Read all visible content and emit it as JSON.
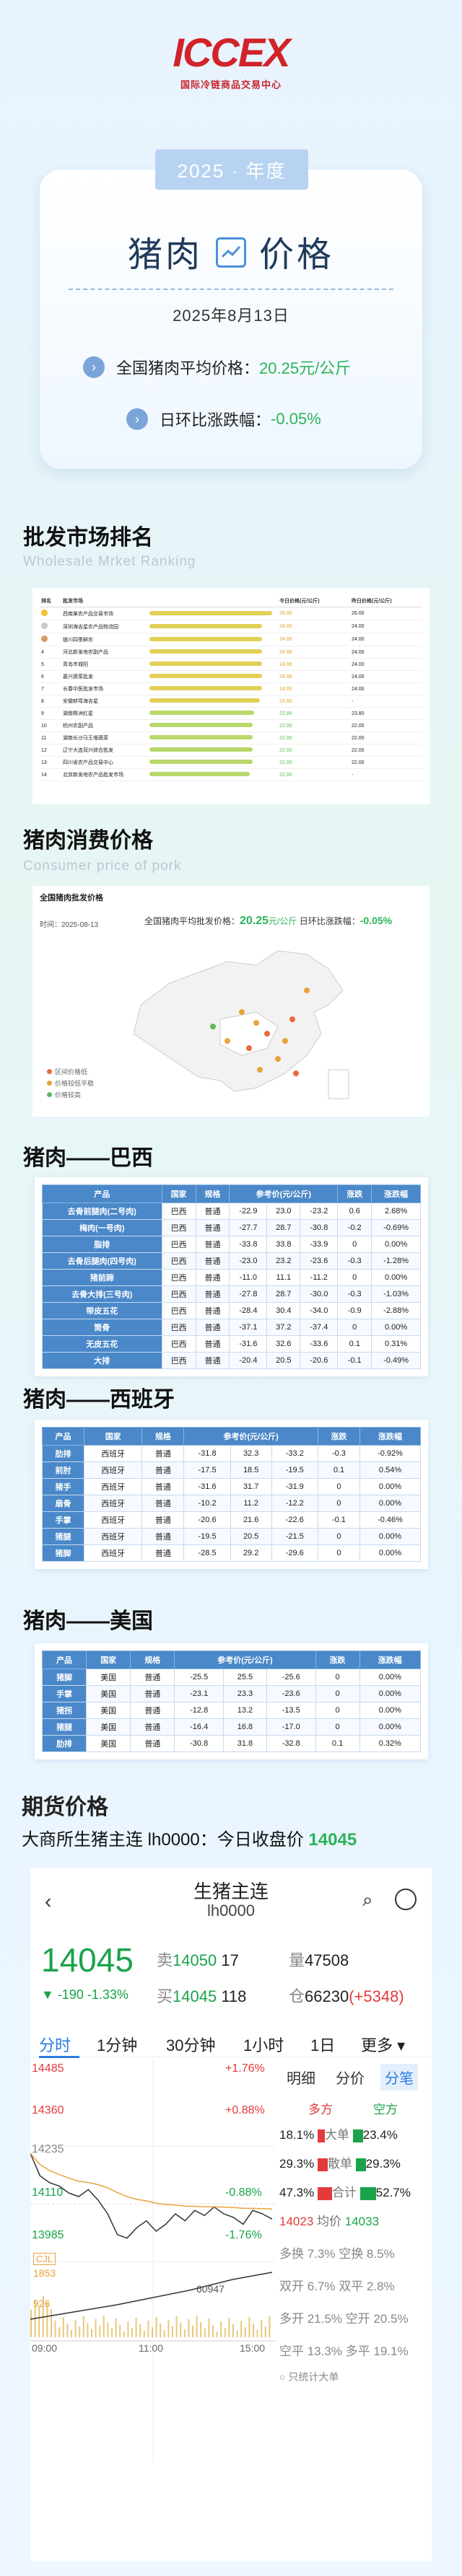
{
  "header": {
    "logo_text": "ICCEX",
    "logo_sub": "国际冷链商品交易中心"
  },
  "hero": {
    "year": "2025 · 年度",
    "title_left": "猪肉",
    "title_right": "价格",
    "date": "2025年8月13日",
    "avg_label": "全国猪肉平均价格：",
    "avg_value": "20.25元/公斤",
    "change_label": "日环比涨跌幅：",
    "change_value": "-0.05%"
  },
  "wholesale": {
    "title": "批发市场排名",
    "subtitle": "Wholesale Mrket Ranking",
    "headers": [
      "排名",
      "批发市场",
      "",
      "今日价格(元/公斤)",
      "昨日价格(元/公斤)"
    ],
    "rows": [
      {
        "rank": "1",
        "name": "西南某农产品交易市场",
        "bar": 1.0,
        "today": "26.00",
        "yest": "26.00",
        "color": "y"
      },
      {
        "rank": "2",
        "name": "深圳海吉星农产品物流园",
        "bar": 0.92,
        "today": "24.00",
        "yest": "24.00",
        "color": "y"
      },
      {
        "rank": "3",
        "name": "银川四季鲜农",
        "bar": 0.92,
        "today": "24.00",
        "yest": "24.00",
        "color": "y"
      },
      {
        "rank": "4",
        "name": "河北新发地农副产品",
        "bar": 0.92,
        "today": "24.00",
        "yest": "24.00",
        "color": "y"
      },
      {
        "rank": "5",
        "name": "青岛市城阳",
        "bar": 0.92,
        "today": "24.00",
        "yest": "24.00",
        "color": "y"
      },
      {
        "rank": "6",
        "name": "嘉兴蔬菜批发",
        "bar": 0.92,
        "today": "24.00",
        "yest": "24.00",
        "color": "y"
      },
      {
        "rank": "7",
        "name": "长春中医批发市场",
        "bar": 0.92,
        "today": "24.00",
        "yest": "24.00",
        "color": "y"
      },
      {
        "rank": "8",
        "name": "安徽蚌埠海吉星",
        "bar": 0.9,
        "today": "23.60",
        "yest": "-",
        "color": "y"
      },
      {
        "rank": "9",
        "name": "湖南株洲红星",
        "bar": 0.85,
        "today": "22.80",
        "yest": "23.80",
        "color": "g"
      },
      {
        "rank": "10",
        "name": "杭州农副产品",
        "bar": 0.84,
        "today": "22.00",
        "yest": "22.00",
        "color": "g"
      },
      {
        "rank": "11",
        "name": "湖南长沙马王堆蔬菜",
        "bar": 0.84,
        "today": "22.00",
        "yest": "22.00",
        "color": "g"
      },
      {
        "rank": "12",
        "name": "辽宁大连双兴综合批发",
        "bar": 0.84,
        "today": "22.00",
        "yest": "22.00",
        "color": "g"
      },
      {
        "rank": "13",
        "name": "四川省农产品交易中心",
        "bar": 0.84,
        "today": "22.00",
        "yest": "22.00",
        "color": "g"
      },
      {
        "rank": "14",
        "name": "北京新发地农产品批发市场",
        "bar": 0.82,
        "today": "22.00",
        "yest": "-",
        "color": "g"
      }
    ]
  },
  "consume": {
    "title": "猪肉消费价格",
    "subtitle": "Consumer price of pork",
    "panel_title": "全国猪肉批发价格",
    "date_label": "时间：",
    "date": "2025-08-13",
    "price_label": "全国猪肉平均批发价格：",
    "price": "20.25",
    "unit": "元/公斤",
    "change_label": "日环比涨跌幅：",
    "change": "-0.05%",
    "legend": [
      "区间价格低",
      "价格较低平稳",
      "价格较高"
    ]
  },
  "brazil": {
    "title": "猪肉——巴西",
    "headers": [
      "产品",
      "国家",
      "规格",
      "参考价(元/公斤)",
      "",
      "",
      "涨跌",
      "涨跌幅"
    ],
    "rows": [
      [
        "去骨前腿肉(二号肉)",
        "巴西",
        "普通",
        "-22.9",
        "23.0",
        "-23.2",
        "0.6",
        "2.68%"
      ],
      [
        "梅肉(一号肉)",
        "巴西",
        "普通",
        "-27.7",
        "28.7",
        "-30.8",
        "-0.2",
        "-0.69%"
      ],
      [
        "脂排",
        "巴西",
        "普通",
        "-33.8",
        "33.8",
        "-33.9",
        "0",
        "0.00%"
      ],
      [
        "去骨后腿肉(四号肉)",
        "巴西",
        "普通",
        "-23.0",
        "23.2",
        "-23.6",
        "-0.3",
        "-1.28%"
      ],
      [
        "猪前蹄",
        "巴西",
        "普通",
        "-11.0",
        "11.1",
        "-11.2",
        "0",
        "0.00%"
      ],
      [
        "去骨大排(三号肉)",
        "巴西",
        "普通",
        "-27.8",
        "28.7",
        "-30.0",
        "-0.3",
        "-1.03%"
      ],
      [
        "带皮五花",
        "巴西",
        "普通",
        "-28.4",
        "30.4",
        "-34.0",
        "-0.9",
        "-2.88%"
      ],
      [
        "筒骨",
        "巴西",
        "普通",
        "-37.1",
        "37.2",
        "-37.4",
        "0",
        "0.00%"
      ],
      [
        "无皮五花",
        "巴西",
        "普通",
        "-31.6",
        "32.6",
        "-33.6",
        "0.1",
        "0.31%"
      ],
      [
        "大排",
        "巴西",
        "普通",
        "-20.4",
        "20.5",
        "-20.6",
        "-0.1",
        "-0.49%"
      ]
    ]
  },
  "spain": {
    "title": "猪肉——西班牙",
    "headers": [
      "产品",
      "国家",
      "规格",
      "参考价(元/公斤)",
      "",
      "",
      "涨跌",
      "涨跌幅"
    ],
    "rows": [
      [
        "肋排",
        "西班牙",
        "普通",
        "-31.8",
        "32.3",
        "-33.2",
        "-0.3",
        "-0.92%"
      ],
      [
        "前肘",
        "西班牙",
        "普通",
        "-17.5",
        "18.5",
        "-19.5",
        "0.1",
        "0.54%"
      ],
      [
        "猪手",
        "西班牙",
        "普通",
        "-31.6",
        "31.7",
        "-31.9",
        "0",
        "0.00%"
      ],
      [
        "扇骨",
        "西班牙",
        "普通",
        "-10.2",
        "11.2",
        "-12.2",
        "0",
        "0.00%"
      ],
      [
        "手掌",
        "西班牙",
        "普通",
        "-20.6",
        "21.6",
        "-22.6",
        "-0.1",
        "-0.46%"
      ],
      [
        "猪腿",
        "西班牙",
        "普通",
        "-19.5",
        "20.5",
        "-21.5",
        "0",
        "0.00%"
      ],
      [
        "猪脚",
        "西班牙",
        "普通",
        "-28.5",
        "29.2",
        "-29.6",
        "0",
        "0.00%"
      ]
    ]
  },
  "usa": {
    "title": "猪肉——美国",
    "headers": [
      "产品",
      "国家",
      "规格",
      "参考价(元/公斤)",
      "",
      "",
      "涨跌",
      "涨跌幅"
    ],
    "rows": [
      [
        "猪脚",
        "美国",
        "普通",
        "-25.5",
        "25.5",
        "-25.6",
        "0",
        "0.00%"
      ],
      [
        "手掌",
        "美国",
        "普通",
        "-23.1",
        "23.3",
        "-23.6",
        "0",
        "0.00%"
      ],
      [
        "猪拐",
        "美国",
        "普通",
        "-12.8",
        "13.2",
        "-13.5",
        "0",
        "0.00%"
      ],
      [
        "猪腿",
        "美国",
        "普通",
        "-16.4",
        "16.8",
        "-17.0",
        "0",
        "0.00%"
      ],
      [
        "肋排",
        "美国",
        "普通",
        "-30.8",
        "31.8",
        "-32.8",
        "0.1",
        "0.32%"
      ]
    ]
  },
  "futures": {
    "title": "期货价格",
    "subtitle": "大商所生猪主连 lh0000：今日收盘价",
    "close": "14045"
  },
  "app": {
    "name": "生猪主连",
    "code": "lh0000",
    "price": "14045",
    "change": "▼ -190",
    "change_pct": "-1.33%",
    "sell_label": "卖",
    "sell_price": "14050",
    "sell_vol": "17",
    "buy_label": "买",
    "buy_price": "14045",
    "buy_vol": "118",
    "vol_label": "量",
    "vol": "47508",
    "oi_label": "仓",
    "oi": "66230",
    "oi_chg": "(+5348)",
    "tabs": [
      "分时",
      "1分钟",
      "30分钟",
      "1小时",
      "1日",
      "更多 ▾"
    ],
    "right_tabs": [
      "明细",
      "分价",
      "分笔"
    ],
    "y_labels": [
      "14485",
      "14360",
      "14235",
      "14110",
      "13985"
    ],
    "pct_labels": [
      "+1.76%",
      "+0.88%",
      "-0.88%",
      "-1.76%"
    ],
    "x_labels": [
      "09:00",
      "11:00",
      "15:00"
    ],
    "cjl": "CJL",
    "cjl_val": "1853",
    "cjl_val2": "60947",
    "cjl_min": "926",
    "duo": "多方",
    "kong": "空方",
    "rows": [
      {
        "l": "18.1%",
        "m": "大单",
        "r": "23.4%"
      },
      {
        "l": "29.3%",
        "m": "散单",
        "r": "29.3%"
      },
      {
        "l": "47.3%",
        "m": "合计",
        "r": "52.7%"
      }
    ],
    "avg_l": "14023",
    "avg_m": "均价",
    "avg_r": "14033",
    "stats": [
      "多换 7.3%  空换  8.5%",
      "双开 6.7%  双平  2.8%",
      "多开 21.5% 空开 20.5%",
      "空平 13.3% 多平 19.1%"
    ],
    "only_big": "只统计大单",
    "series": [
      14235,
      14170,
      14150,
      14140,
      14120,
      14110,
      14130,
      14100,
      14060,
      14000,
      13990,
      14020,
      14040,
      14010,
      14030,
      14060,
      14040,
      14070,
      14055,
      14080,
      14060,
      14050,
      14030,
      14070,
      14060,
      14045
    ]
  }
}
